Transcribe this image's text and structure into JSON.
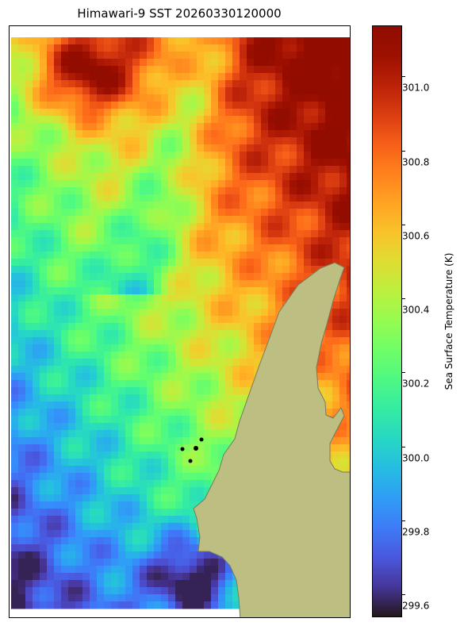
{
  "title": "Himawari-9 SST 20260330120000",
  "colorbar": {
    "label": "Sea Surface Temperature (K)",
    "min": 299.54,
    "max": 301.14,
    "colormap": "turbo",
    "ticks": [
      "299.6",
      "299.8",
      "300.0",
      "300.2",
      "300.4",
      "300.6",
      "300.8",
      "301.0"
    ]
  },
  "colors": {
    "land": "#bdbe82",
    "coastline": "#7a7a5a",
    "frame": "#000000"
  }
}
